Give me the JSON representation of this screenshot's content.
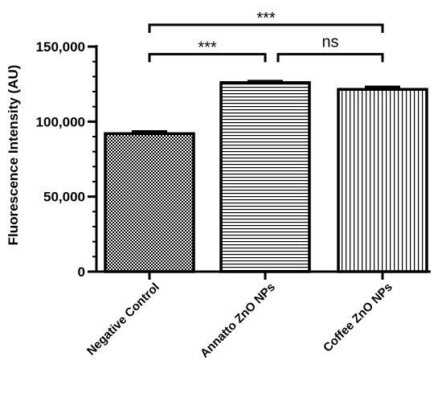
{
  "chart_data": {
    "type": "bar",
    "title": "",
    "xlabel": "",
    "ylabel": "Fluorescence Intensity (AU)",
    "ylim": [
      0,
      150000
    ],
    "yticks": [
      0,
      50000,
      100000,
      150000
    ],
    "ytick_labels": [
      "0",
      "50,000",
      "100,000",
      "150,000"
    ],
    "categories": [
      "Negative Control",
      "Annatto ZnO NPs",
      "Coffee ZnO NPs"
    ],
    "values": [
      92000,
      126000,
      121500
    ],
    "errors": [
      1500,
      1000,
      1700
    ],
    "patterns": [
      "checker",
      "horizontal",
      "vertical"
    ],
    "grid": false,
    "significance": [
      {
        "from": 0,
        "to": 1,
        "label": "***",
        "height": 145000
      },
      {
        "from": 1,
        "to": 2,
        "label": "ns",
        "height": 145000
      },
      {
        "from": 0,
        "to": 2,
        "label": "***",
        "height": 164500
      }
    ]
  }
}
